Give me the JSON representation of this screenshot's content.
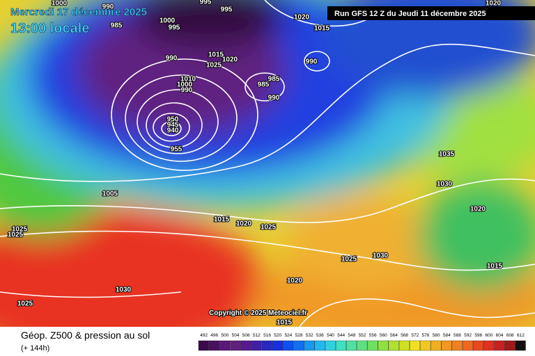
{
  "header": {
    "date": "Mercredi 17 décembre 2025",
    "time": "13:00 locale",
    "run": "Run GFS 12 Z du Jeudi 11 décembre 2025"
  },
  "copyright": "Copyright © 2025 Meteociel.fr",
  "footer": {
    "title": "Géop. Z500 & pression au sol",
    "lead": "(+ 144h)"
  },
  "isobar_labels": [
    1000,
    990,
    985,
    1000,
    995,
    995,
    995,
    1020,
    1015,
    1020,
    990,
    1015,
    1020,
    1025,
    990,
    1010,
    1000,
    990,
    985,
    985,
    990,
    950,
    945,
    940,
    955,
    1035,
    1030,
    1020,
    1005,
    1015,
    1020,
    1025,
    1025,
    1025,
    1025,
    1030,
    1015,
    1020,
    1030,
    1025,
    1015
  ],
  "colorbar": {
    "labels": [
      492,
      496,
      500,
      504,
      508,
      512,
      516,
      520,
      524,
      528,
      532,
      536,
      540,
      544,
      548,
      552,
      556,
      560,
      564,
      568,
      572,
      576,
      580,
      584,
      588,
      592,
      596,
      600,
      604,
      608,
      612
    ],
    "colors": [
      "#3a0a4a",
      "#4a1060",
      "#5a1878",
      "#602080",
      "#581890",
      "#4020a0",
      "#2828c0",
      "#1830e0",
      "#1050f0",
      "#1070f0",
      "#1898f0",
      "#20b8f0",
      "#30d0e0",
      "#40e0c0",
      "#50e0a0",
      "#60e080",
      "#70e060",
      "#90e040",
      "#b0e030",
      "#d0e020",
      "#f0e020",
      "#f0c820",
      "#f0b020",
      "#f09820",
      "#f08020",
      "#f06820",
      "#e84820",
      "#e03020",
      "#c82020",
      "#a01818",
      "#101010"
    ]
  }
}
